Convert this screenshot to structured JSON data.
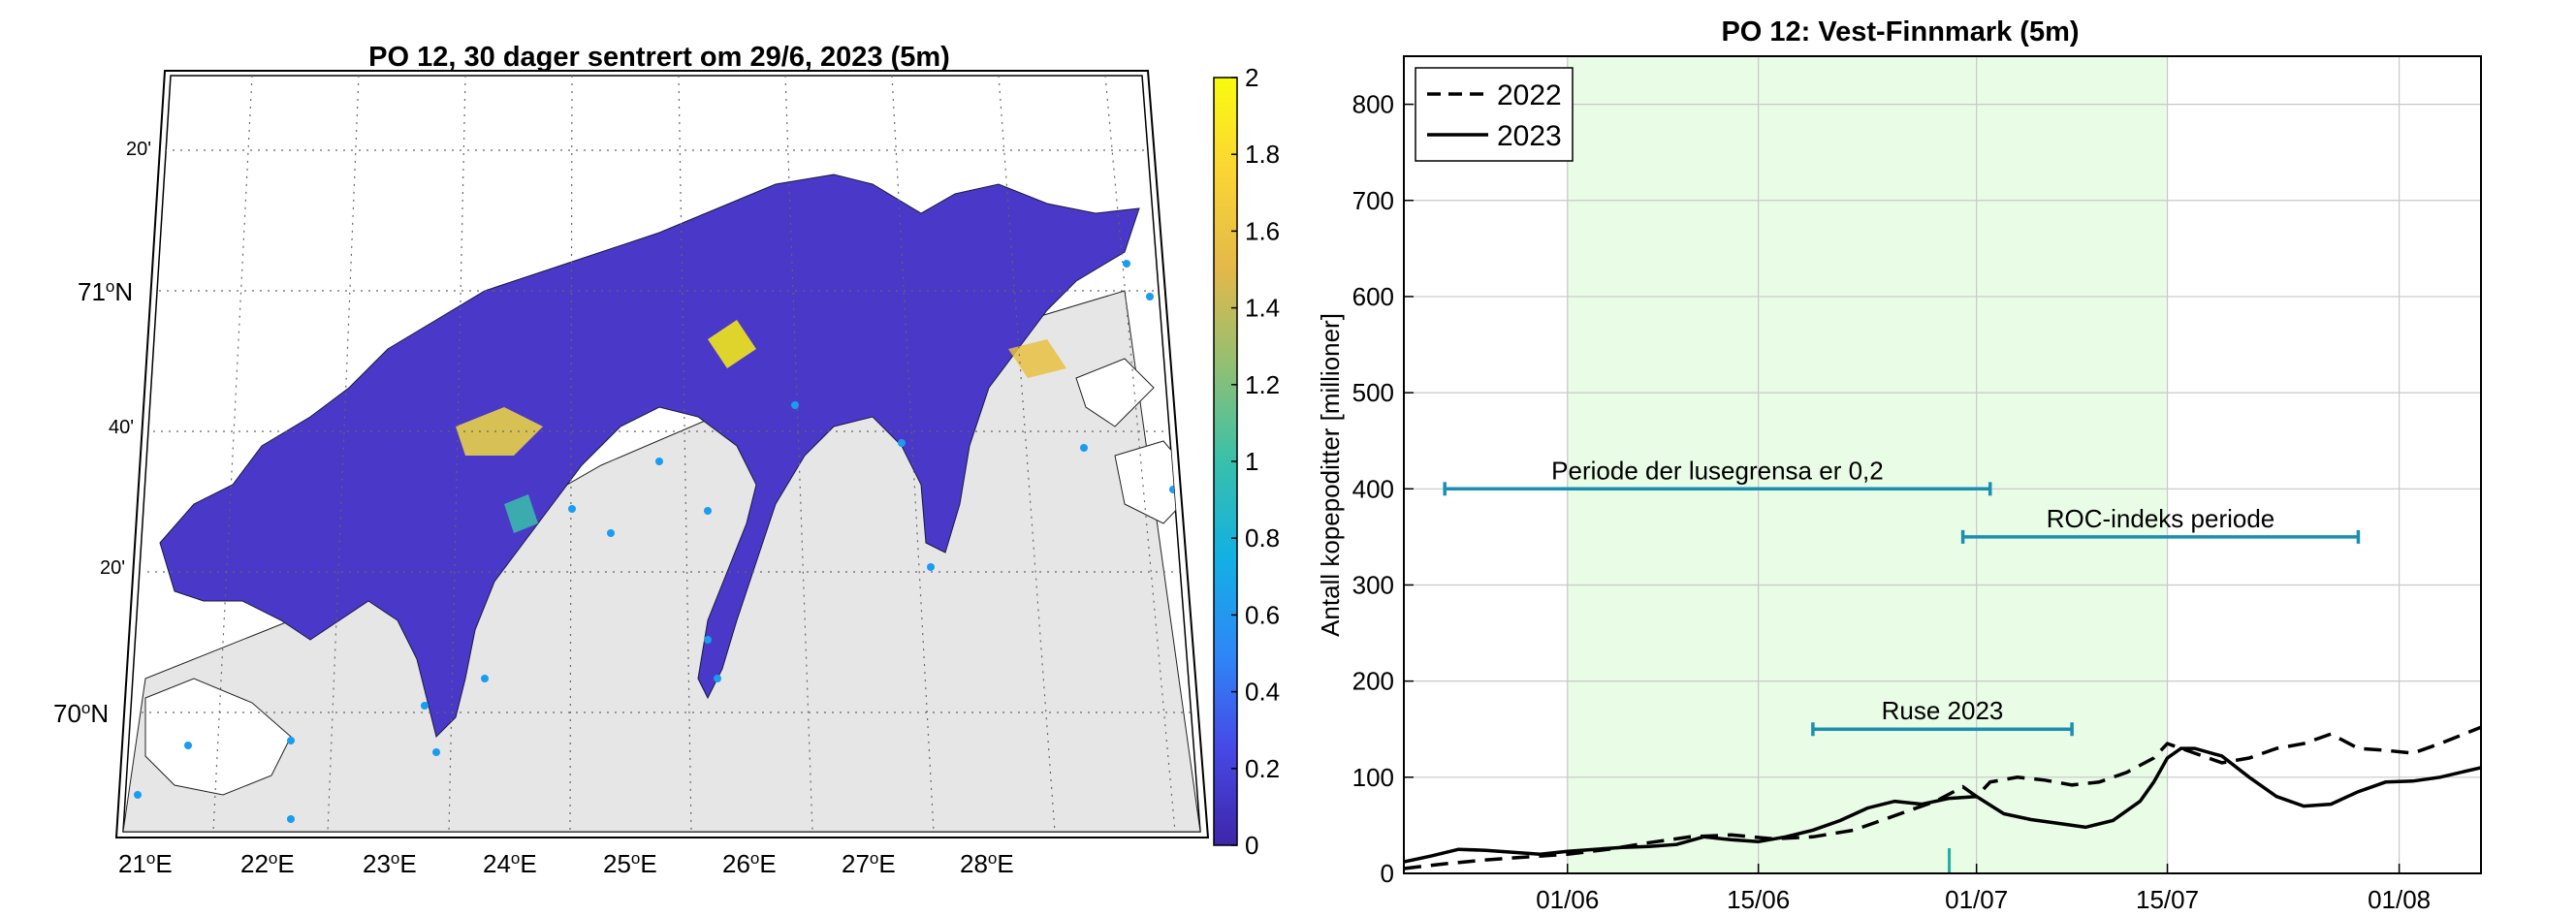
{
  "map_panel": {
    "title": "PO 12, 30 dager sentrert om 29/6, 2023 (5m)",
    "lon_labels": [
      {
        "deg": "21",
        "suf": "E"
      },
      {
        "deg": "22",
        "suf": "E"
      },
      {
        "deg": "23",
        "suf": "E"
      },
      {
        "deg": "24",
        "suf": "E"
      },
      {
        "deg": "25",
        "suf": "E"
      },
      {
        "deg": "26",
        "suf": "E"
      },
      {
        "deg": "27",
        "suf": "E"
      },
      {
        "deg": "28",
        "suf": "E"
      }
    ],
    "lat_major": [
      {
        "deg": "71",
        "suf": "N"
      },
      {
        "deg": "70",
        "suf": "N"
      }
    ],
    "lat_minor": [
      "20'",
      "40'",
      "20'"
    ],
    "colorbar": {
      "ticks": [
        "0",
        "0.2",
        "0.4",
        "0.6",
        "0.8",
        "1",
        "1.2",
        "1.4",
        "1.6",
        "1.8",
        "2"
      ],
      "min": 0,
      "max": 2,
      "colors": [
        "#3e26a8",
        "#4748e6",
        "#2e87f7",
        "#13b0e3",
        "#38c0aa",
        "#92bf73",
        "#e3b84a",
        "#fbd435",
        "#f9fb0e"
      ]
    },
    "land_color": "#e6e6e6",
    "water_color": "#4a38c8",
    "station_color": "#1a9cf0"
  },
  "chart_data": {
    "type": "line",
    "title": "PO 12: Vest-Finnmark (5m)",
    "xlabel": "",
    "ylabel": "Antall kopepoditter [millioner]",
    "x_unit": "day of year",
    "xlim": [
      140,
      219
    ],
    "ylim": [
      0,
      850
    ],
    "yticks": [
      0,
      100,
      200,
      300,
      400,
      500,
      600,
      700,
      800
    ],
    "xticks": [
      {
        "day": 152,
        "label": "01/06"
      },
      {
        "day": 166,
        "label": "15/06"
      },
      {
        "day": 182,
        "label": "01/07"
      },
      {
        "day": 196,
        "label": "15/07"
      },
      {
        "day": 213,
        "label": "01/08"
      }
    ],
    "grid": true,
    "legend_position": "top-left",
    "series": [
      {
        "name": "2022",
        "style": "dashed",
        "x": [
          140,
          143,
          146,
          149,
          152,
          155,
          158,
          161,
          164,
          167,
          170,
          173,
          175,
          177,
          179,
          181,
          182,
          183,
          185,
          187,
          189,
          191,
          193,
          195,
          196,
          198,
          200,
          202,
          204,
          206,
          208,
          210,
          212,
          214,
          216,
          219
        ],
        "values": [
          5,
          10,
          14,
          17,
          20,
          25,
          32,
          38,
          40,
          36,
          38,
          45,
          55,
          65,
          75,
          90,
          80,
          95,
          100,
          97,
          92,
          95,
          105,
          120,
          135,
          125,
          115,
          120,
          130,
          135,
          145,
          130,
          128,
          125,
          135,
          152
        ]
      },
      {
        "name": "2023",
        "style": "solid",
        "x": [
          140,
          142,
          144,
          146,
          148,
          150,
          152,
          154,
          156,
          158,
          160,
          162,
          164,
          166,
          168,
          170,
          172,
          174,
          176,
          178,
          180,
          182,
          184,
          186,
          188,
          190,
          192,
          194,
          195,
          196,
          197,
          198,
          200,
          202,
          204,
          206,
          208,
          210,
          212,
          214,
          216,
          219
        ],
        "values": [
          12,
          18,
          25,
          24,
          22,
          20,
          23,
          25,
          27,
          28,
          30,
          38,
          35,
          33,
          38,
          45,
          55,
          68,
          75,
          72,
          78,
          80,
          62,
          56,
          52,
          48,
          55,
          75,
          95,
          120,
          130,
          130,
          122,
          100,
          80,
          70,
          72,
          85,
          95,
          96,
          100,
          110
        ]
      }
    ],
    "shaded_region": {
      "from": 152,
      "to": 196,
      "color": "#e8fce6"
    },
    "periods": [
      {
        "label": "Periode der lusegrensa er 0,2",
        "from": 143,
        "to": 183,
        "y": 400
      },
      {
        "label": "ROC-indeks periode",
        "from": 181,
        "to": 210,
        "y": 350
      },
      {
        "label": "Ruse 2023",
        "from": 170,
        "to": 189,
        "y": 150
      }
    ],
    "marker_day": 180,
    "period_color": "#1a8fb0"
  }
}
